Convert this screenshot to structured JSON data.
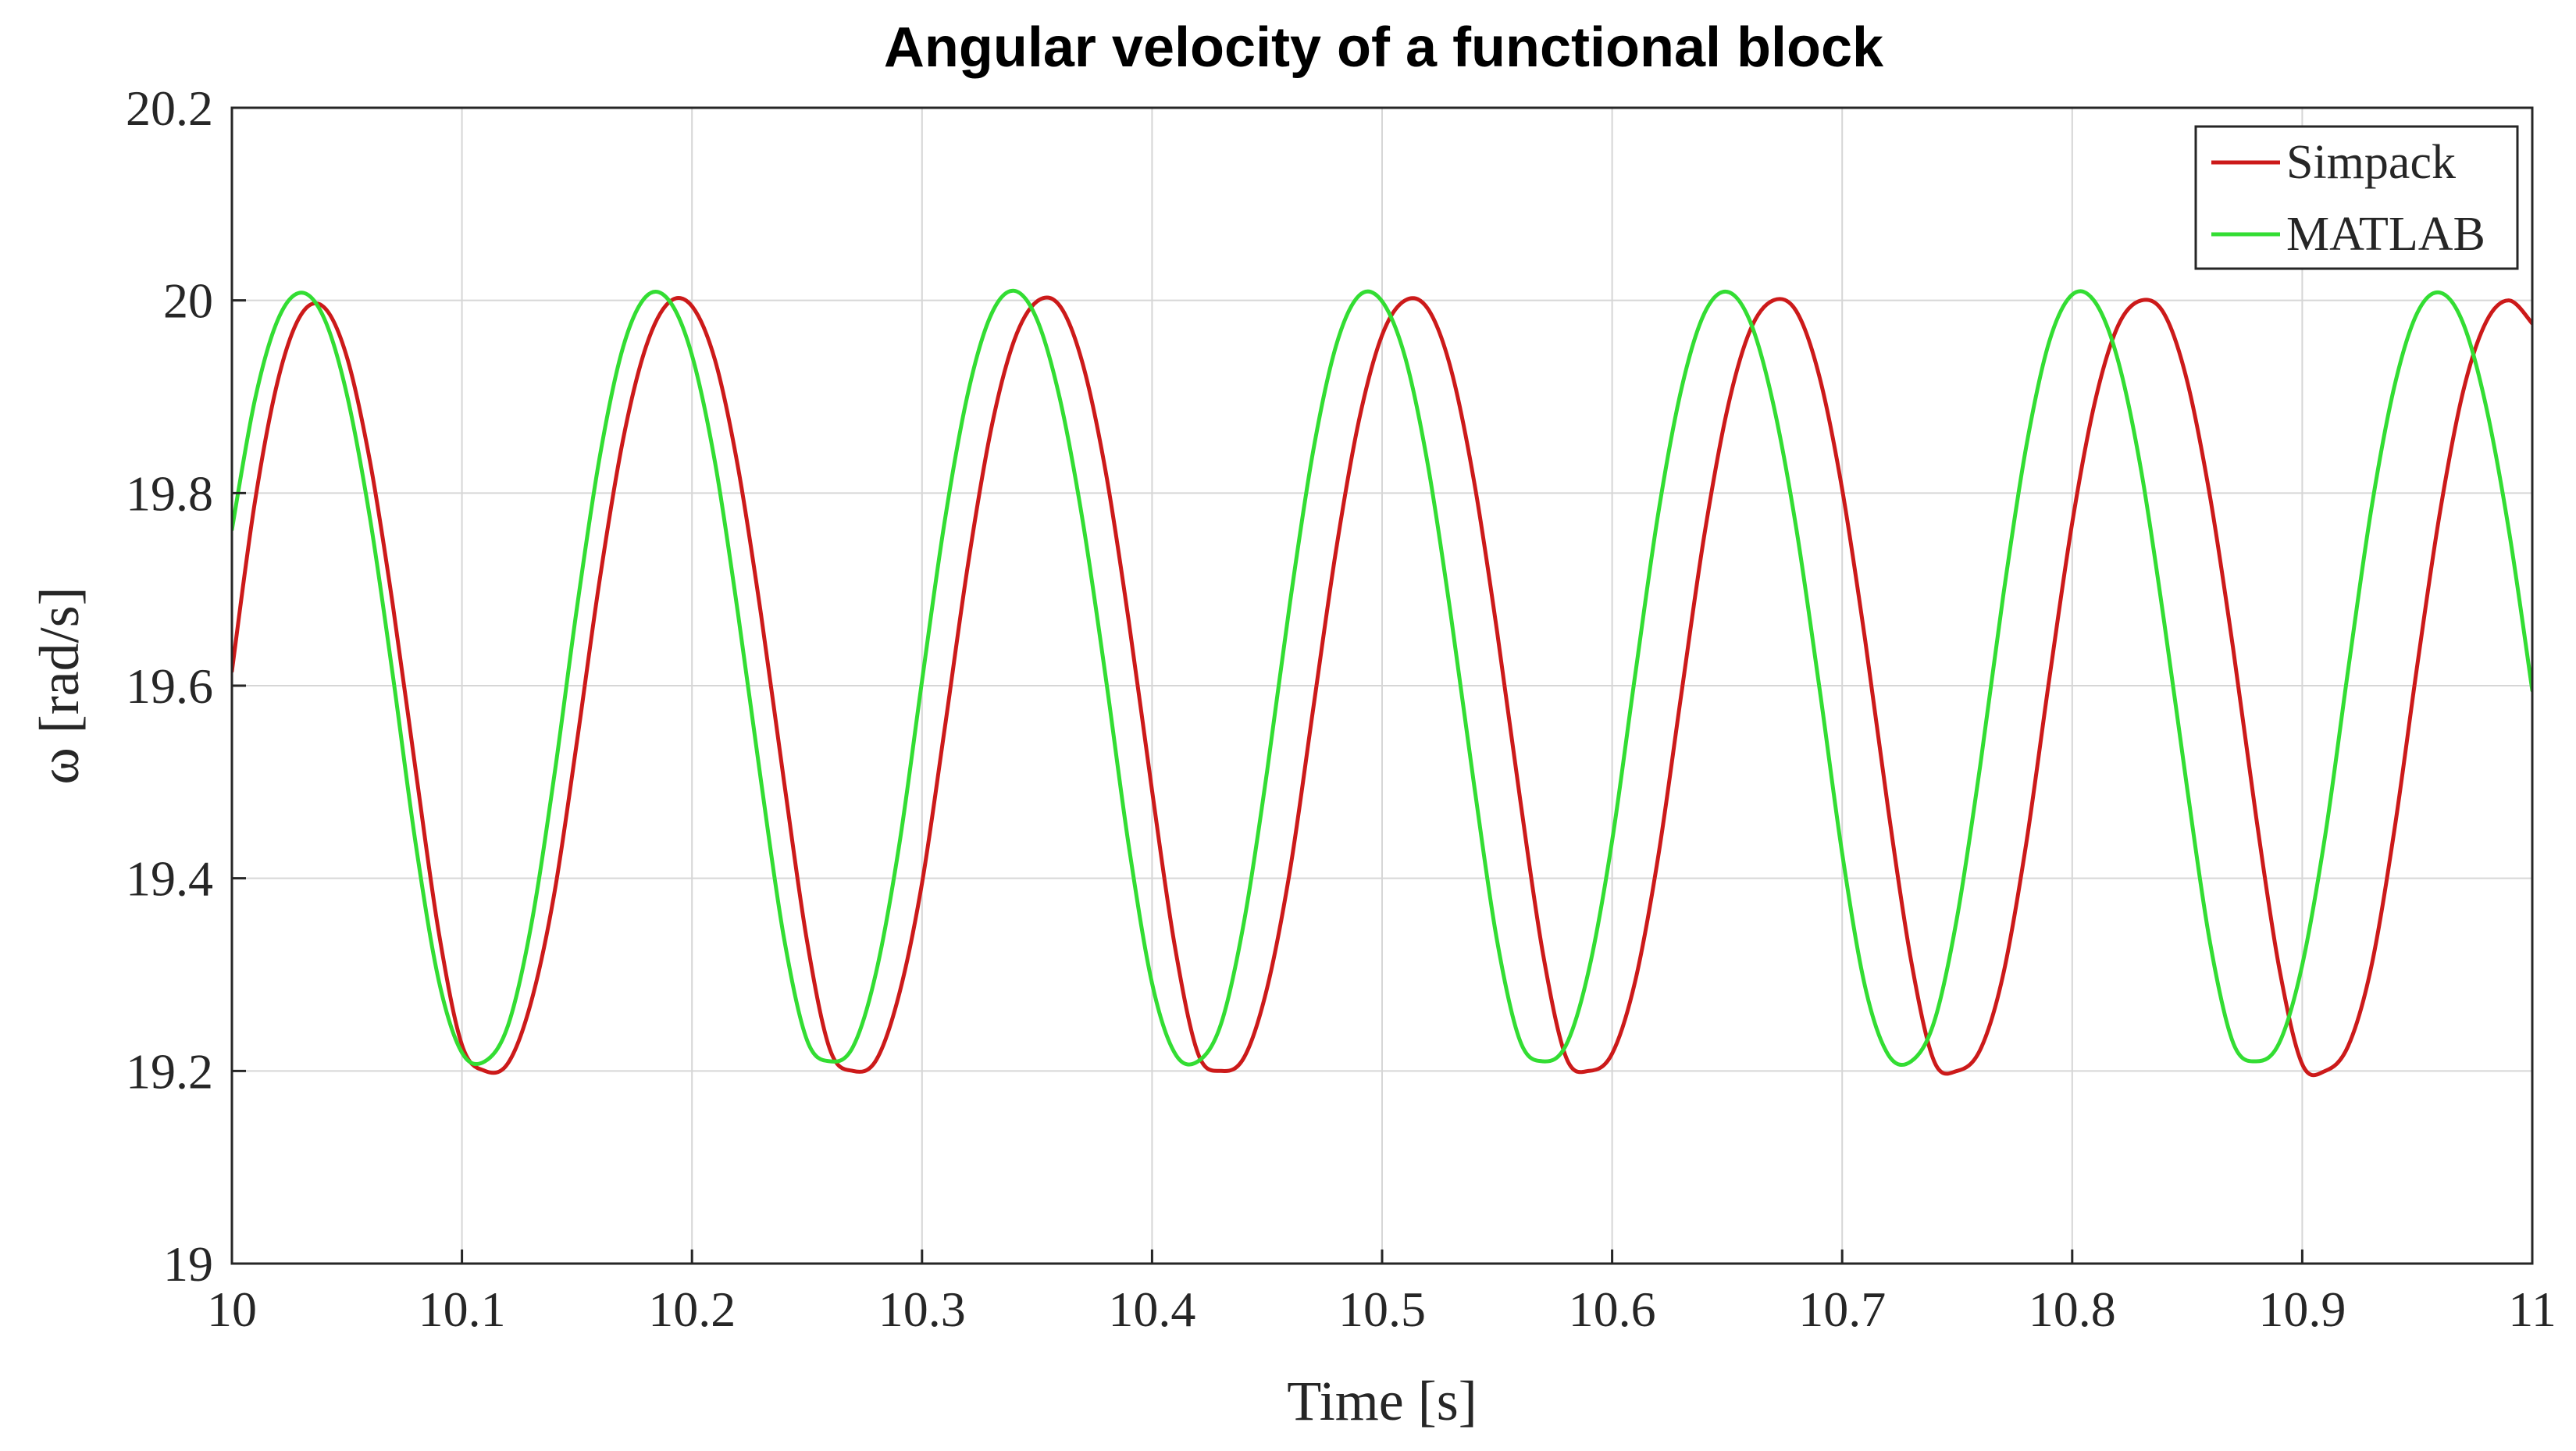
{
  "chart_data": {
    "type": "line",
    "title": "Angular velocity of a functional block",
    "xlabel": "Time [s]",
    "ylabel": "ω [rad/s]",
    "xlim": [
      10,
      11
    ],
    "ylim": [
      19,
      20.2
    ],
    "xticks": [
      "10",
      "10.1",
      "10.2",
      "10.3",
      "10.4",
      "10.5",
      "10.6",
      "10.7",
      "10.8",
      "10.9",
      "11"
    ],
    "yticks": [
      "19",
      "19.2",
      "19.4",
      "19.6",
      "19.8",
      "20",
      "20.2"
    ],
    "grid": true,
    "legend": "top-right",
    "series": [
      {
        "name": "Simpack",
        "color": "#cc1a1a",
        "x": [
          10.0,
          10.01,
          10.02,
          10.03,
          10.04,
          10.05,
          10.06,
          10.07,
          10.08,
          10.09,
          10.1,
          10.11,
          10.12,
          10.13,
          10.14,
          10.15,
          10.16,
          10.17,
          10.18,
          10.19,
          10.2,
          10.21,
          10.22,
          10.23,
          10.24,
          10.25,
          10.26,
          10.27,
          10.28,
          10.29,
          10.3,
          10.31,
          10.32,
          10.33,
          10.34,
          10.35,
          10.36,
          10.37,
          10.38,
          10.39,
          10.4,
          10.41,
          10.42,
          10.43,
          10.44,
          10.45,
          10.46,
          10.47,
          10.48,
          10.49,
          10.5,
          10.51,
          10.52,
          10.53,
          10.54,
          10.55,
          10.56,
          10.57,
          10.58,
          10.59,
          10.6,
          10.61,
          10.62,
          10.63,
          10.64,
          10.65,
          10.66,
          10.67,
          10.68,
          10.69,
          10.7,
          10.71,
          10.72,
          10.73,
          10.74,
          10.75,
          10.76,
          10.77,
          10.78,
          10.79,
          10.8,
          10.81,
          10.82,
          10.83,
          10.84,
          10.85,
          10.86,
          10.87,
          10.88,
          10.89,
          10.9,
          10.91,
          10.92,
          10.93,
          10.94,
          10.95,
          10.96,
          10.97,
          10.98,
          10.99,
          11.0
        ],
        "y": [
          19.615,
          19.791,
          19.917,
          19.985,
          19.993,
          19.941,
          19.833,
          19.683,
          19.51,
          19.343,
          19.227,
          19.2,
          19.208,
          19.271,
          19.382,
          19.542,
          19.712,
          19.855,
          19.952,
          19.998,
          19.994,
          19.938,
          19.827,
          19.674,
          19.501,
          19.335,
          19.222,
          19.2,
          19.211,
          19.279,
          19.395,
          19.558,
          19.726,
          19.866,
          19.958,
          19.999,
          19.994,
          19.933,
          19.82,
          19.665,
          19.491,
          19.328,
          19.218,
          19.2,
          19.214,
          19.286,
          19.409,
          19.575,
          19.741,
          19.876,
          19.964,
          20.0,
          19.991,
          19.928,
          19.812,
          19.656,
          19.482,
          19.321,
          19.214,
          19.2,
          19.218,
          19.293,
          19.422,
          19.59,
          19.755,
          19.886,
          19.969,
          20.0,
          19.989,
          19.922,
          19.804,
          19.647,
          19.472,
          19.314,
          19.21,
          19.2,
          19.222,
          19.3,
          19.436,
          19.606,
          19.769,
          19.896,
          19.974,
          20.0,
          19.986,
          19.916,
          19.795,
          19.638,
          19.463,
          19.307,
          19.207,
          19.2,
          19.226,
          19.308,
          19.449,
          19.621,
          19.782,
          19.906,
          19.978,
          20.0,
          19.976
        ]
      },
      {
        "name": "MATLAB",
        "color": "#33dd33",
        "x": [
          10.0,
          10.01,
          10.02,
          10.03,
          10.04,
          10.05,
          10.06,
          10.07,
          10.08,
          10.09,
          10.1,
          10.11,
          10.12,
          10.13,
          10.14,
          10.15,
          10.16,
          10.17,
          10.18,
          10.19,
          10.2,
          10.21,
          10.22,
          10.23,
          10.24,
          10.25,
          10.26,
          10.27,
          10.28,
          10.29,
          10.3,
          10.31,
          10.32,
          10.33,
          10.34,
          10.35,
          10.36,
          10.37,
          10.38,
          10.39,
          10.4,
          10.41,
          10.42,
          10.43,
          10.44,
          10.45,
          10.46,
          10.47,
          10.48,
          10.49,
          10.5,
          10.51,
          10.52,
          10.53,
          10.54,
          10.55,
          10.56,
          10.57,
          10.58,
          10.59,
          10.6,
          10.61,
          10.62,
          10.63,
          10.64,
          10.65,
          10.66,
          10.67,
          10.68,
          10.69,
          10.7,
          10.71,
          10.72,
          10.73,
          10.74,
          10.75,
          10.76,
          10.77,
          10.78,
          10.79,
          10.8,
          10.81,
          10.82,
          10.83,
          10.84,
          10.85,
          10.86,
          10.87,
          10.88,
          10.89,
          10.9,
          10.91,
          10.92,
          10.93,
          10.94,
          10.95,
          10.96,
          10.97,
          10.98,
          10.99,
          11.0
        ],
        "y": [
          19.762,
          19.897,
          19.98,
          20.008,
          19.982,
          19.902,
          19.774,
          19.61,
          19.434,
          19.293,
          19.219,
          19.21,
          19.247,
          19.35,
          19.504,
          19.681,
          19.839,
          19.951,
          20.004,
          20.0,
          19.943,
          19.832,
          19.675,
          19.501,
          19.338,
          19.232,
          19.21,
          19.225,
          19.302,
          19.433,
          19.605,
          19.773,
          19.904,
          19.985,
          20.01,
          19.98,
          19.897,
          19.769,
          19.606,
          19.432,
          19.291,
          19.218,
          19.21,
          19.249,
          19.355,
          19.511,
          19.687,
          19.843,
          19.953,
          20.005,
          19.999,
          19.941,
          19.828,
          19.671,
          19.497,
          19.335,
          19.231,
          19.21,
          19.227,
          19.306,
          19.439,
          19.611,
          19.778,
          19.907,
          19.986,
          20.009,
          19.978,
          19.893,
          19.764,
          19.6,
          19.426,
          19.287,
          19.217,
          19.21,
          19.251,
          19.36,
          19.517,
          19.693,
          19.848,
          19.957,
          20.006,
          19.998,
          19.937,
          19.823,
          19.666,
          19.493,
          19.332,
          19.229,
          19.21,
          19.229,
          19.31,
          19.445,
          19.617,
          19.783,
          19.91,
          19.987,
          20.008,
          19.976,
          19.889,
          19.759,
          19.595
        ]
      }
    ]
  }
}
